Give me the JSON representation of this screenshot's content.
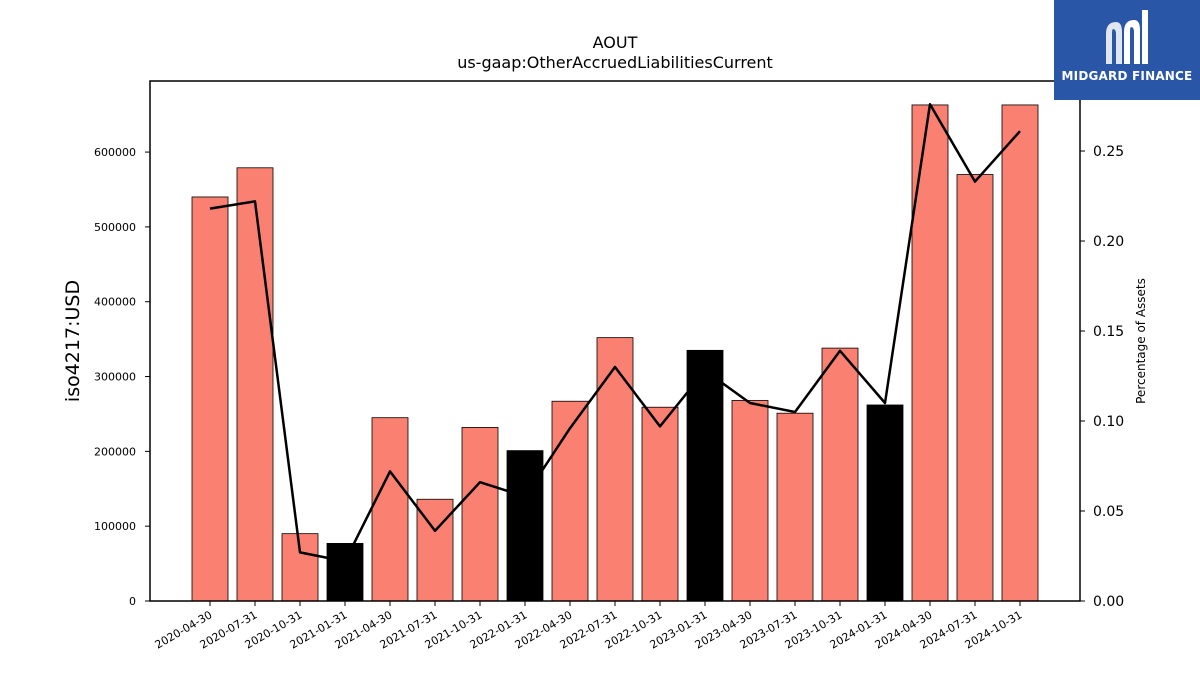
{
  "chart_data": {
    "type": "bar",
    "title": "AOUT",
    "subtitle": "us-gaap:OtherAccruedLiabilitiesCurrent",
    "ylabel": "iso4217:USD",
    "y2label": "Percentage of Assets",
    "ylim": [
      0,
      695000
    ],
    "y2lim": [
      0,
      0.2889
    ],
    "yticks": [
      "0",
      "100000",
      "200000",
      "300000",
      "400000",
      "500000",
      "600000"
    ],
    "y2ticks": [
      "0.00",
      "0.05",
      "0.10",
      "0.15",
      "0.20",
      "0.25"
    ],
    "categories": [
      "2020-04-30",
      "2020-07-31",
      "2020-10-31",
      "2021-01-31",
      "2021-04-30",
      "2021-07-31",
      "2021-10-31",
      "2022-01-31",
      "2022-04-30",
      "2022-07-31",
      "2022-10-31",
      "2023-01-31",
      "2023-04-30",
      "2023-07-31",
      "2023-10-31",
      "2024-01-31",
      "2024-04-30",
      "2024-07-31",
      "2024-10-31"
    ],
    "series": [
      {
        "kind": "bar",
        "values": [
          540000,
          579000,
          90000,
          77000,
          245000,
          136000,
          232000,
          201000,
          267000,
          352000,
          259000,
          335000,
          268000,
          251000,
          338000,
          262000,
          663000,
          570000,
          663000
        ],
        "highlight": [
          false,
          false,
          false,
          true,
          false,
          false,
          false,
          true,
          false,
          false,
          false,
          true,
          false,
          false,
          false,
          true,
          false,
          false,
          false
        ]
      },
      {
        "kind": "line",
        "axis": "right",
        "values": [
          0.218,
          0.222,
          0.027,
          0.022,
          0.072,
          0.039,
          0.066,
          0.058,
          0.096,
          0.13,
          0.097,
          0.128,
          0.11,
          0.105,
          0.139,
          0.11,
          0.276,
          0.233,
          0.261
        ]
      }
    ],
    "colors": {
      "bar": "#fa8072",
      "bar_highlight": "#000000",
      "line": "#000000"
    },
    "grid": false
  },
  "logo": {
    "text": "MIDGARD FINANCE",
    "color": "#2a56a8"
  }
}
